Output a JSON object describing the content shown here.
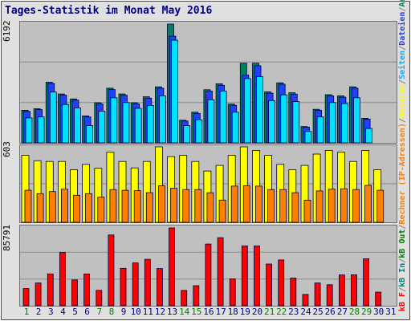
{
  "title": "Tages-Statistik im Monat May 2016",
  "legend": [
    {
      "text": "kB F",
      "color": "#ff0000"
    },
    {
      "text": "/",
      "color": "#808080"
    },
    {
      "text": "kB In",
      "color": "#008080"
    },
    {
      "text": "/",
      "color": "#808080"
    },
    {
      "text": "kB Out",
      "color": "#008000"
    },
    {
      "text": "/",
      "color": "#808080"
    },
    {
      "text": "Rechner (IP-Adressen)",
      "color": "#ff8000"
    },
    {
      "text": "/",
      "color": "#808080"
    },
    {
      "text": "Besuche",
      "color": "#ffff00"
    },
    {
      "text": "/",
      "color": "#808080"
    },
    {
      "text": "Seiten",
      "color": "#00b0ff"
    },
    {
      "text": "/",
      "color": "#808080"
    },
    {
      "text": "Dateien",
      "color": "#2040ff"
    },
    {
      "text": "/",
      "color": "#808080"
    },
    {
      "text": "Anfragen",
      "color": "#008060"
    }
  ],
  "colors": {
    "requests": "#008060",
    "files": "#2040ff",
    "pages": "#00e0ff",
    "visits": "#ffff00",
    "sites": "#ff8000",
    "kbytes": "#ff0000",
    "weekend_label": "#008000",
    "weekday_label": "#000080"
  },
  "chart_data": [
    {
      "type": "bar",
      "panel": "top",
      "ymax_label": "6192",
      "ylim": [
        0,
        6192
      ],
      "categories": [
        "1",
        "2",
        "3",
        "4",
        "5",
        "6",
        "7",
        "8",
        "9",
        "10",
        "11",
        "12",
        "13",
        "14",
        "15",
        "16",
        "17",
        "18",
        "19",
        "20",
        "21",
        "22",
        "23",
        "24",
        "25",
        "26",
        "27",
        "28",
        "29",
        "30",
        "31"
      ],
      "weekend": [
        1,
        7,
        8,
        14,
        15,
        21,
        22,
        28,
        29
      ],
      "series": [
        {
          "name": "Anfragen",
          "values": [
            1700,
            1780,
            3160,
            2550,
            2290,
            1400,
            2090,
            2850,
            2550,
            2090,
            2400,
            2920,
            6192,
            1180,
            1600,
            2770,
            3080,
            2020,
            4150,
            4150,
            2660,
            3130,
            2610,
            850,
            1750,
            2510,
            2450,
            2920,
            1280,
            0,
            0
          ]
        },
        {
          "name": "Dateien",
          "values": [
            1640,
            1730,
            3100,
            2490,
            2230,
            1350,
            2030,
            2780,
            2480,
            2030,
            2330,
            2850,
            5560,
            1140,
            1530,
            2700,
            3000,
            1960,
            3530,
            4020,
            2590,
            3060,
            2540,
            820,
            1700,
            2450,
            2380,
            2850,
            1240,
            0,
            0
          ]
        },
        {
          "name": "Seiten",
          "values": [
            1300,
            1350,
            2650,
            2000,
            1820,
            900,
            1650,
            2350,
            2100,
            1800,
            1950,
            2450,
            5350,
            900,
            1200,
            2250,
            2700,
            1600,
            3350,
            3450,
            2200,
            2500,
            2150,
            600,
            1350,
            2100,
            2050,
            2350,
            750,
            0,
            0
          ]
        }
      ]
    },
    {
      "type": "bar",
      "panel": "middle",
      "ymax_label": "603",
      "ylim": [
        0,
        603
      ],
      "categories": [
        "1",
        "2",
        "3",
        "4",
        "5",
        "6",
        "7",
        "8",
        "9",
        "10",
        "11",
        "12",
        "13",
        "14",
        "15",
        "16",
        "17",
        "18",
        "19",
        "20",
        "21",
        "22",
        "23",
        "24",
        "25",
        "26",
        "27",
        "28",
        "29",
        "30",
        "31"
      ],
      "series": [
        {
          "name": "Besuche",
          "values": [
            535,
            492,
            486,
            486,
            420,
            463,
            432,
            560,
            486,
            435,
            486,
            603,
            525,
            535,
            486,
            410,
            455,
            535,
            603,
            575,
            535,
            463,
            420,
            455,
            545,
            575,
            560,
            486,
            575,
            420,
            0
          ]
        },
        {
          "name": "Rechner (IP-Adressen)",
          "values": [
            256,
            229,
            246,
            265,
            216,
            229,
            201,
            262,
            256,
            253,
            237,
            292,
            272,
            262,
            262,
            236,
            178,
            289,
            292,
            289,
            262,
            262,
            237,
            177,
            251,
            265,
            268,
            262,
            295,
            256,
            0
          ]
        }
      ]
    },
    {
      "type": "bar",
      "panel": "bottom",
      "ymax_label": "85791",
      "ylim": [
        0,
        85791
      ],
      "categories": [
        "1",
        "2",
        "3",
        "4",
        "5",
        "6",
        "7",
        "8",
        "9",
        "10",
        "11",
        "12",
        "13",
        "14",
        "15",
        "16",
        "17",
        "18",
        "19",
        "20",
        "21",
        "22",
        "23",
        "24",
        "25",
        "26",
        "27",
        "28",
        "29",
        "30",
        "31"
      ],
      "series": [
        {
          "name": "kB F",
          "values": [
            18900,
            25100,
            35100,
            58800,
            28500,
            35000,
            17000,
            78000,
            41300,
            47200,
            51200,
            41000,
            85791,
            16900,
            22100,
            68000,
            75000,
            29500,
            66000,
            66000,
            46000,
            50500,
            30500,
            12500,
            25100,
            23200,
            34000,
            34100,
            51800,
            15000,
            0
          ]
        }
      ]
    }
  ]
}
